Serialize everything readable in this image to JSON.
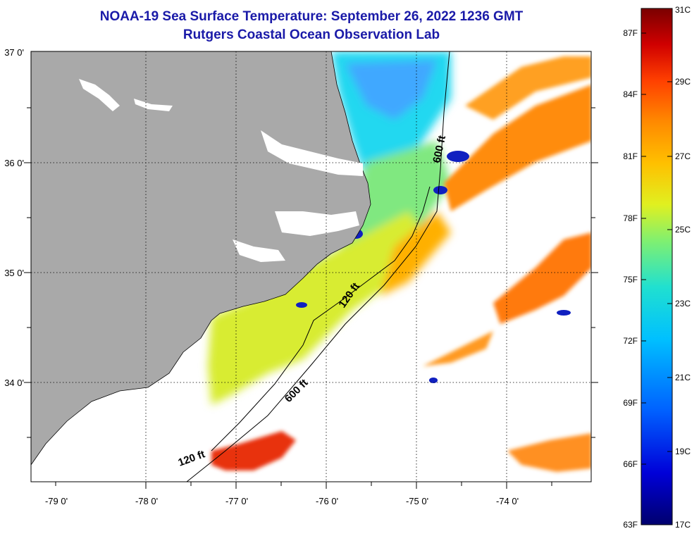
{
  "title": "NOAA-19 Sea Surface Temperature:  September 26, 2022 1236 GMT",
  "subtitle": "Rutgers Coastal Ocean Observation Lab",
  "lat_labels": [
    "37 0'",
    "36 0'",
    "35 0'",
    "34 0'"
  ],
  "lon_labels": [
    "-79 0'",
    "-78 0'",
    "-77 0'",
    "-76 0'",
    "-75 0'",
    "-74 0'"
  ],
  "isobaths": {
    "label_120": "120 ft",
    "label_600": "600 ft"
  },
  "colorbar": {
    "fahrenheit_labels": [
      "87F",
      "84F",
      "81F",
      "78F",
      "75F",
      "72F",
      "69F",
      "66F",
      "63F"
    ],
    "celsius_labels": [
      "31C",
      "29C",
      "27C",
      "25C",
      "23C",
      "21C",
      "19C",
      "17C"
    ]
  },
  "colors": {
    "land": "#a9a9a9",
    "title": "#1a1aa8",
    "palette": [
      "#00006e",
      "#0000d8",
      "#0060ff",
      "#00b4ff",
      "#20e0e0",
      "#70f080",
      "#d8f020",
      "#ffd000",
      "#ff9a00",
      "#ff5a00",
      "#e00000",
      "#8a0000"
    ]
  }
}
